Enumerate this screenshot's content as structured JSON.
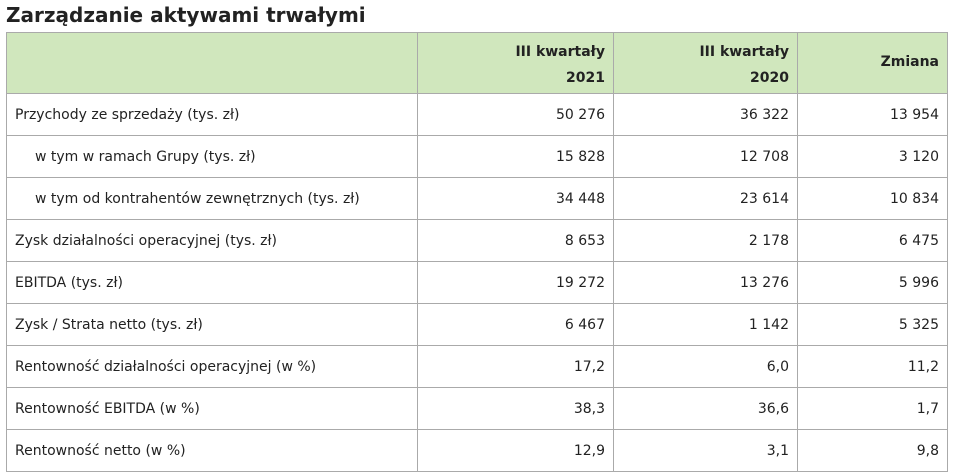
{
  "title": "Zarządzanie aktywami trwałymi",
  "table": {
    "header": [
      "",
      [
        "III kwartały",
        "2021"
      ],
      [
        "III kwartały",
        "2020"
      ],
      "Zmiana"
    ],
    "rows": [
      [
        "Przychody ze sprzedaży (tys. zł)",
        "50 276",
        "36 322",
        "13 954"
      ],
      [
        "w tym w ramach Grupy (tys. zł)",
        "15 828",
        "12 708",
        "3 120"
      ],
      [
        "w tym od kontrahentów zewnętrznych (tys. zł)",
        "34 448",
        "23 614",
        "10 834"
      ],
      [
        "Zysk działalności operacyjnej (tys. zł)",
        "8 653",
        "2 178",
        "6 475"
      ],
      [
        "EBITDA (tys. zł)",
        "19 272",
        "13 276",
        "5 996"
      ],
      [
        "Zysk / Strata netto (tys. zł)",
        "6 467",
        "1 142",
        "5 325"
      ],
      [
        "Rentowność działalności operacyjnej (w %)",
        "17,2",
        "6,0",
        "11,2"
      ],
      [
        "Rentowność EBITDA (w %)",
        "38,3",
        "36,6",
        "1,7"
      ],
      [
        "Rentowność netto (w %)",
        "12,9",
        "3,1",
        "9,8"
      ]
    ]
  }
}
